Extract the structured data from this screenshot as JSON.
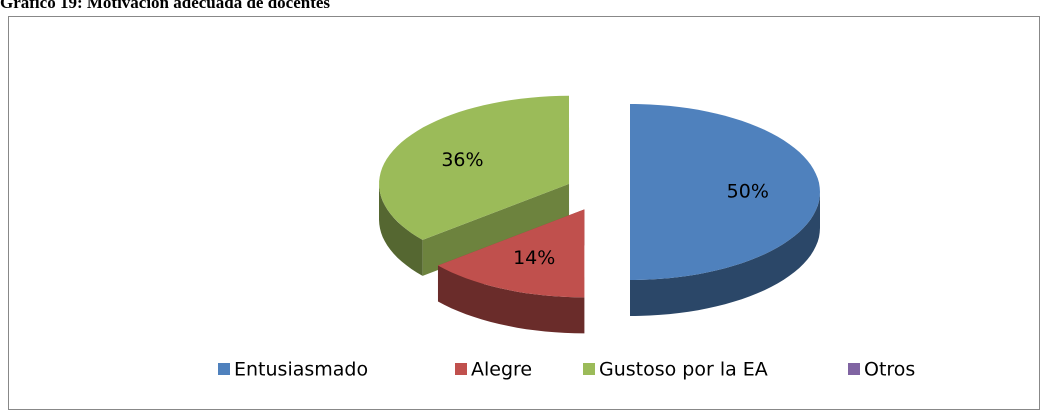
{
  "chart_data": {
    "type": "pie",
    "title": "Gráfico 19: Motivación adecuada de docentes",
    "categories": [
      "Entusiasmado",
      "Alegre",
      "Gustoso por la EA",
      "Otros"
    ],
    "values": [
      50,
      14,
      36,
      0
    ],
    "value_labels": [
      "50%",
      "14%",
      "36%",
      null
    ],
    "colors": [
      "#4f81bd",
      "#c0504d",
      "#9bbb59",
      "#8064a2"
    ],
    "legend": "bottom"
  }
}
